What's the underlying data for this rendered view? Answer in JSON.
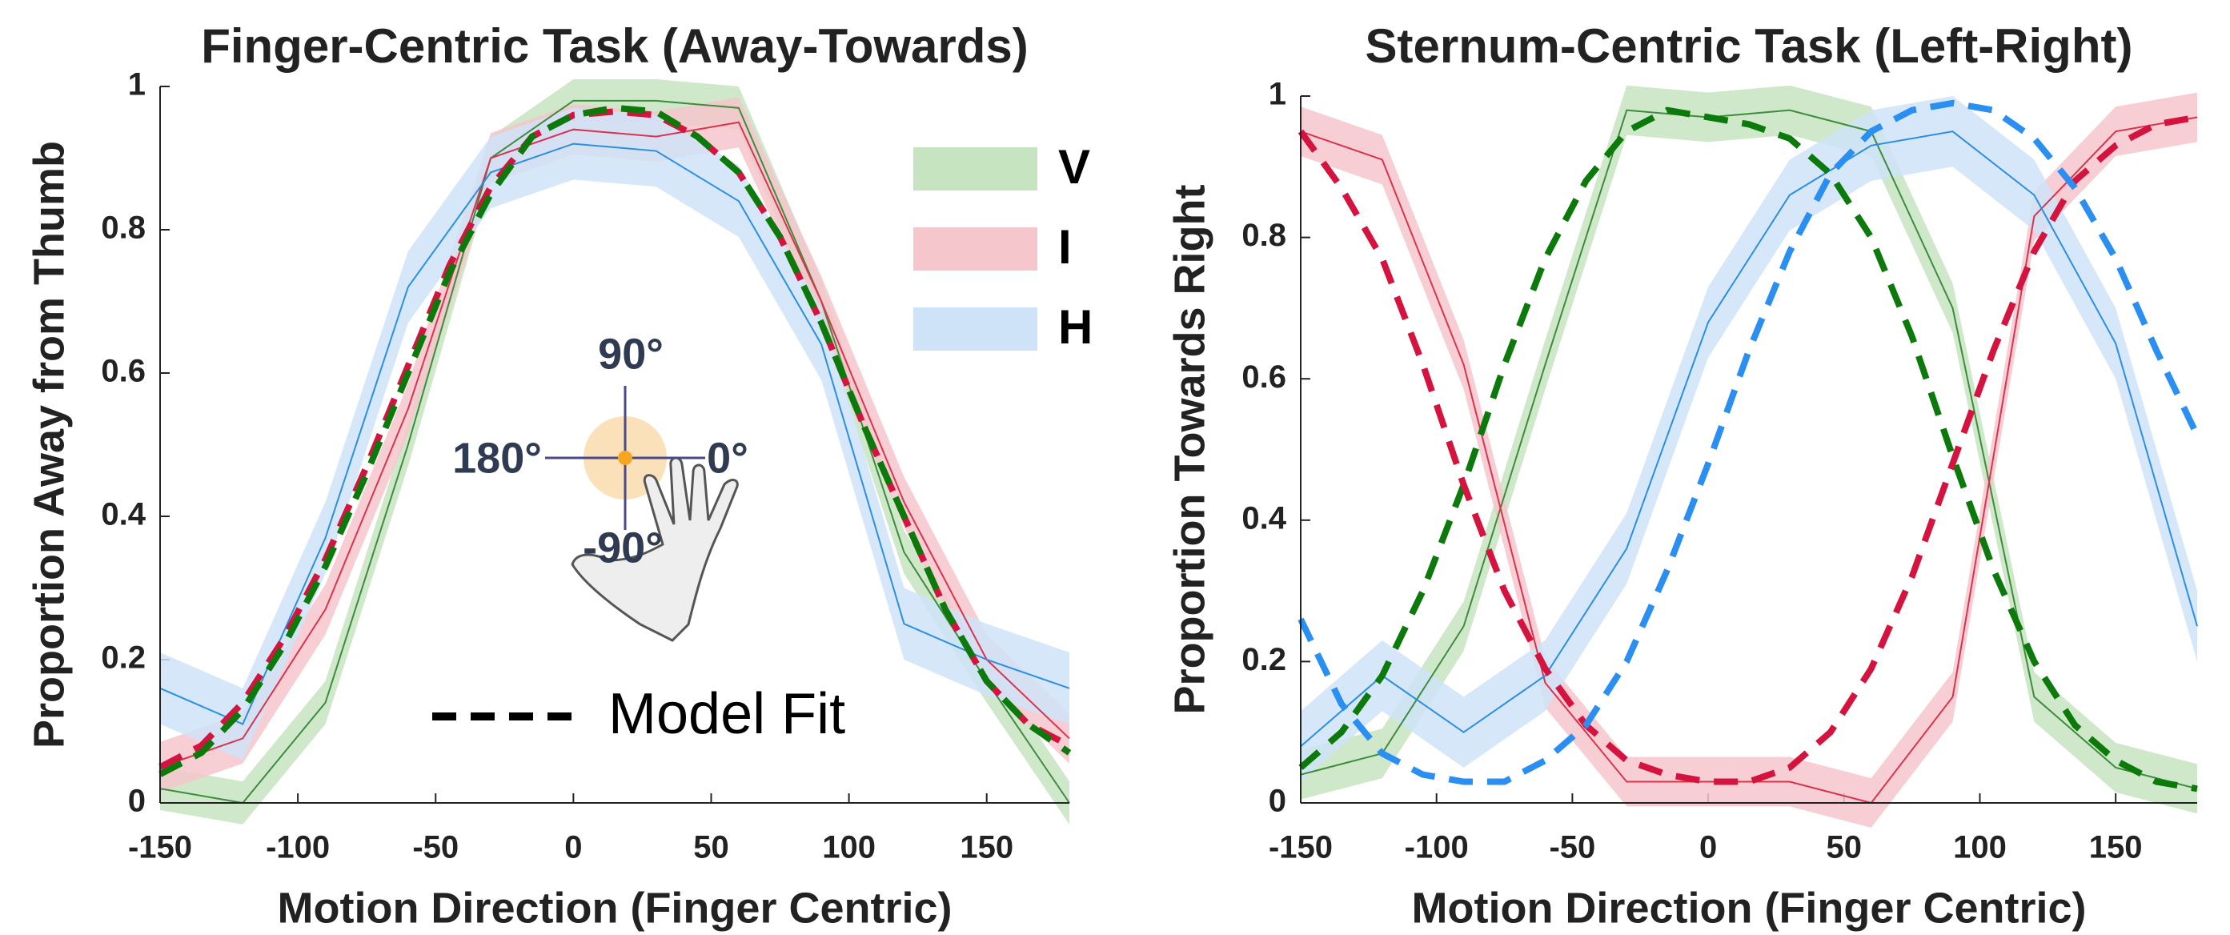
{
  "chart_data": [
    {
      "type": "line",
      "title": "Finger-Centric Task (Away-Towards)",
      "xlabel": "Motion Direction (Finger Centric)",
      "ylabel": "Proportion Away from Thumb",
      "xlim": [
        -150,
        180
      ],
      "ylim": [
        0,
        1
      ],
      "xticks": [
        -150,
        -100,
        -50,
        0,
        50,
        100,
        150
      ],
      "yticks": [
        0,
        0.2,
        0.4,
        0.6,
        0.8,
        1
      ],
      "legend": "upper right",
      "x": [
        -150,
        -120,
        -90,
        -60,
        -30,
        0,
        30,
        60,
        90,
        120,
        150,
        180
      ],
      "series": [
        {
          "name": "V",
          "color": "#3d8c3d",
          "band_color": "#c6e4c0",
          "error": 0.03,
          "values": [
            0.02,
            0,
            0.14,
            0.5,
            0.9,
            0.98,
            0.98,
            0.97,
            0.7,
            0.35,
            0.17,
            0
          ]
        },
        {
          "name": "I",
          "color": "#d9334f",
          "band_color": "#f6c6cd",
          "error": 0.035,
          "values": [
            0.05,
            0.09,
            0.27,
            0.55,
            0.9,
            0.94,
            0.93,
            0.95,
            0.7,
            0.42,
            0.2,
            0.09
          ]
        },
        {
          "name": "H",
          "color": "#2a8fe0",
          "band_color": "#cfe3f8",
          "error": 0.05,
          "values": [
            0.16,
            0.11,
            0.37,
            0.72,
            0.88,
            0.92,
            0.91,
            0.84,
            0.64,
            0.25,
            0.2,
            0.16
          ]
        }
      ],
      "fit": {
        "label": "Model Fit",
        "x": [
          -150,
          -135,
          -120,
          -105,
          -90,
          -75,
          -60,
          -45,
          -30,
          -15,
          0,
          15,
          30,
          45,
          60,
          75,
          90,
          105,
          120,
          135,
          150,
          165,
          180
        ],
        "series": [
          {
            "color": "#d4143f",
            "values": [
              0.05,
              0.08,
              0.14,
              0.23,
              0.34,
              0.47,
              0.61,
              0.75,
              0.86,
              0.93,
              0.96,
              0.965,
              0.96,
              0.93,
              0.88,
              0.79,
              0.67,
              0.53,
              0.4,
              0.27,
              0.17,
              0.11,
              0.08
            ]
          },
          {
            "color": "#0b7a0b",
            "values": [
              0.04,
              0.07,
              0.13,
              0.22,
              0.33,
              0.46,
              0.6,
              0.74,
              0.85,
              0.93,
              0.96,
              0.97,
              0.965,
              0.93,
              0.88,
              0.79,
              0.67,
              0.53,
              0.4,
              0.27,
              0.17,
              0.11,
              0.07
            ]
          }
        ]
      },
      "annotations": [
        "90°",
        "180°",
        "0°",
        "-90°"
      ]
    },
    {
      "type": "line",
      "title": "Sternum-Centric Task (Left-Right)",
      "xlabel": "Motion Direction (Finger Centric)",
      "ylabel": "Proportion Towards Right",
      "xlim": [
        -150,
        180
      ],
      "ylim": [
        0,
        1
      ],
      "xticks": [
        -150,
        -100,
        -50,
        0,
        50,
        100,
        150
      ],
      "yticks": [
        0,
        0.2,
        0.4,
        0.6,
        0.8,
        1
      ],
      "x": [
        -150,
        -120,
        -90,
        -60,
        -30,
        0,
        30,
        60,
        90,
        120,
        150,
        180
      ],
      "series": [
        {
          "color": "#3d8c3d",
          "band_color": "#c6e4c0",
          "error": 0.035,
          "values": [
            0.04,
            0.07,
            0.25,
            0.62,
            0.98,
            0.97,
            0.98,
            0.95,
            0.7,
            0.15,
            0.05,
            0.02
          ]
        },
        {
          "color": "#d9334f",
          "band_color": "#f6c6cd",
          "error": 0.035,
          "values": [
            0.95,
            0.91,
            0.62,
            0.17,
            0.03,
            0.03,
            0.03,
            0,
            0.15,
            0.83,
            0.95,
            0.97
          ]
        },
        {
          "color": "#2a8fe0",
          "band_color": "#cfe3f8",
          "error": 0.05,
          "values": [
            0.08,
            0.18,
            0.1,
            0.18,
            0.36,
            0.68,
            0.86,
            0.93,
            0.95,
            0.86,
            0.65,
            0.25
          ]
        }
      ],
      "fit": {
        "x": [
          -150,
          -135,
          -120,
          -105,
          -90,
          -75,
          -60,
          -45,
          -30,
          -15,
          0,
          15,
          30,
          45,
          60,
          75,
          90,
          105,
          120,
          135,
          150,
          165,
          180
        ],
        "series": [
          {
            "color": "#0b7a0b",
            "values": [
              0.05,
              0.1,
              0.18,
              0.3,
              0.45,
              0.62,
              0.77,
              0.88,
              0.95,
              0.98,
              0.97,
              0.96,
              0.94,
              0.89,
              0.8,
              0.66,
              0.49,
              0.33,
              0.2,
              0.11,
              0.06,
              0.03,
              0.02
            ]
          },
          {
            "color": "#d4143f",
            "values": [
              0.95,
              0.87,
              0.77,
              0.62,
              0.45,
              0.3,
              0.19,
              0.11,
              0.06,
              0.04,
              0.03,
              0.03,
              0.05,
              0.1,
              0.19,
              0.32,
              0.48,
              0.64,
              0.78,
              0.88,
              0.93,
              0.96,
              0.97
            ]
          },
          {
            "color": "#2a8ff0",
            "values": [
              0.26,
              0.14,
              0.07,
              0.04,
              0.03,
              0.03,
              0.06,
              0.11,
              0.2,
              0.33,
              0.48,
              0.64,
              0.78,
              0.89,
              0.95,
              0.98,
              0.99,
              0.98,
              0.94,
              0.87,
              0.77,
              0.64,
              0.52
            ]
          }
        ]
      }
    }
  ]
}
